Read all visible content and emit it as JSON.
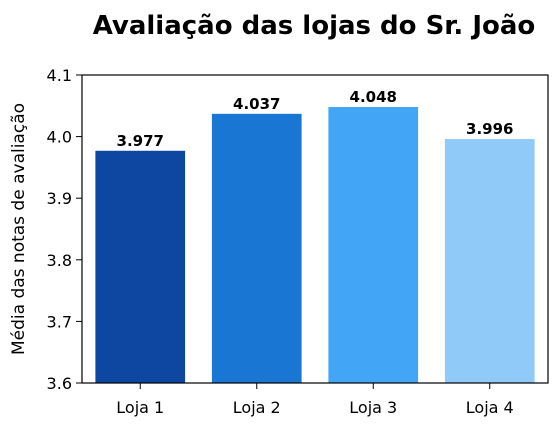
{
  "chart_data": {
    "type": "bar",
    "title": "Avaliação das lojas do Sr. João",
    "xlabel": "",
    "ylabel": "Média das notas de avaliação",
    "categories": [
      "Loja 1",
      "Loja 2",
      "Loja 3",
      "Loja 4"
    ],
    "values": [
      3.977,
      4.037,
      4.048,
      3.996
    ],
    "data_labels": [
      "3.977",
      "4.037",
      "4.048",
      "3.996"
    ],
    "colors": [
      "#0d47a1",
      "#1976d2",
      "#42a5f5",
      "#90caf9"
    ],
    "ylim": [
      3.6,
      4.1
    ],
    "yticks": [
      3.6,
      3.7,
      3.8,
      3.9,
      4.0,
      4.1
    ],
    "ytick_labels": [
      "3.6",
      "3.7",
      "3.8",
      "3.9",
      "4.0",
      "4.1"
    ],
    "grid": false,
    "legend": "none"
  }
}
